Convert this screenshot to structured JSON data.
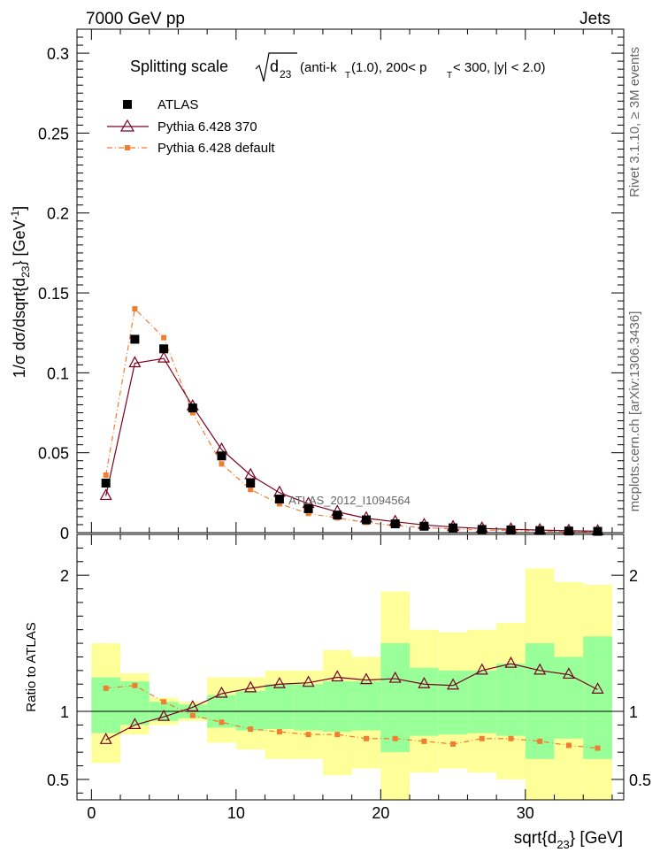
{
  "header": {
    "left": "7000 GeV pp",
    "right": "Jets"
  },
  "side_text": {
    "rivet": "Rivet 3.1.10, ≥ 3M events",
    "mcplots": "mcplots.cern.ch [arXiv:1306.3436]"
  },
  "watermark": "ATLAS_2012_I1094564",
  "title": {
    "prefix": "Splitting scale",
    "sqrt_base": "d",
    "sqrt_sub": "23",
    "cuts_a": "(anti-k",
    "cuts_a_sub": "T",
    "cuts_b": "(1.0), 200< p",
    "cuts_b_sub": "T",
    "cuts_c": " < 300, |y| < 2.0)"
  },
  "legend": {
    "atlas": "ATLAS",
    "p370": "Pythia 6.428 370",
    "pdef": "Pythia 6.428 default"
  },
  "axes": {
    "ylabel_main": "1/σ dσ/dsqrt{d",
    "ylabel_main_sub": "23",
    "ylabel_main_end": "} [GeV",
    "ylabel_main_sup": "-1",
    "ylabel_main_close": "]",
    "ylabel_ratio": "Ratio to ATLAS",
    "xlabel": "sqrt{d",
    "xlabel_sub": "23",
    "xlabel_end": "} [GeV]"
  },
  "colors": {
    "atlas": "#000000",
    "p370": "#7a0020",
    "pdef": "#f07d30",
    "band_inner": "#99ff99",
    "band_outer": "#ffff99"
  },
  "chart_data": [
    {
      "type": "scatter",
      "panel": "main",
      "xlim": [
        -1,
        36.8
      ],
      "ylim": [
        0,
        0.315
      ],
      "x_ticks": [
        0,
        10,
        20,
        30
      ],
      "y_ticks": [
        0,
        0.05,
        0.1,
        0.15,
        0.2,
        0.25,
        0.3
      ],
      "y_tick_labels": [
        "0",
        "0.05",
        "0.1",
        "0.15",
        "0.2",
        "0.25",
        "0.3"
      ],
      "x": [
        1,
        3,
        5,
        7,
        9,
        11,
        13,
        15,
        17,
        19,
        21,
        23,
        25,
        27,
        29,
        31,
        33,
        35
      ],
      "series": [
        {
          "name": "ATLAS",
          "values": [
            0.031,
            0.121,
            0.115,
            0.078,
            0.048,
            0.031,
            0.021,
            0.015,
            0.011,
            0.008,
            0.0055,
            0.004,
            0.003,
            0.002,
            0.0017,
            0.0013,
            0.001,
            0.0008
          ]
        },
        {
          "name": "Pythia 6.428 370",
          "values": [
            0.023,
            0.106,
            0.109,
            0.079,
            0.052,
            0.036,
            0.025,
            0.018,
            0.013,
            0.009,
            0.0068,
            0.0048,
            0.0035,
            0.0026,
            0.0021,
            0.0016,
            0.0012,
            0.0009
          ]
        },
        {
          "name": "Pythia 6.428 default",
          "values": [
            0.036,
            0.14,
            0.122,
            0.075,
            0.043,
            0.027,
            0.018,
            0.012,
            0.0092,
            0.0064,
            0.0044,
            0.0031,
            0.0023,
            0.0016,
            0.0014,
            0.001,
            0.0007,
            0.0006
          ]
        }
      ]
    },
    {
      "type": "line",
      "panel": "ratio",
      "xlim": [
        -1,
        36.8
      ],
      "ylim": [
        0.35,
        2.3
      ],
      "x_ticks": [
        0,
        10,
        20,
        30
      ],
      "x_tick_labels": [
        "0",
        "10",
        "20",
        "30"
      ],
      "y_ticks": [
        0.5,
        1,
        2
      ],
      "y_tick_labels": [
        "0.5",
        "1",
        "2"
      ],
      "reference_line": 1,
      "bins": [
        [
          0,
          2
        ],
        [
          2,
          4
        ],
        [
          4,
          6
        ],
        [
          6,
          8
        ],
        [
          8,
          10
        ],
        [
          10,
          12
        ],
        [
          12,
          14
        ],
        [
          14,
          16
        ],
        [
          16,
          18
        ],
        [
          18,
          20
        ],
        [
          20,
          22
        ],
        [
          22,
          24
        ],
        [
          24,
          26
        ],
        [
          26,
          28
        ],
        [
          28,
          30
        ],
        [
          30,
          32
        ],
        [
          32,
          34
        ],
        [
          34,
          36
        ]
      ],
      "band_inner": [
        [
          0.84,
          1.25
        ],
        [
          0.9,
          1.22
        ],
        [
          0.93,
          1.07
        ],
        [
          0.95,
          1.05
        ],
        [
          0.88,
          1.12
        ],
        [
          0.86,
          1.15
        ],
        [
          0.87,
          1.2
        ],
        [
          0.86,
          1.2
        ],
        [
          0.85,
          1.22
        ],
        [
          0.86,
          1.22
        ],
        [
          0.7,
          1.5
        ],
        [
          0.82,
          1.32
        ],
        [
          0.83,
          1.3
        ],
        [
          0.84,
          1.3
        ],
        [
          0.82,
          1.35
        ],
        [
          0.65,
          1.5
        ],
        [
          0.8,
          1.4
        ],
        [
          0.65,
          1.55
        ]
      ],
      "band_outer": [
        [
          0.62,
          1.5
        ],
        [
          0.83,
          1.28
        ],
        [
          0.9,
          1.1
        ],
        [
          0.93,
          1.07
        ],
        [
          0.77,
          1.25
        ],
        [
          0.72,
          1.25
        ],
        [
          0.65,
          1.3
        ],
        [
          0.65,
          1.3
        ],
        [
          0.53,
          1.45
        ],
        [
          0.58,
          1.4
        ],
        [
          0.35,
          1.88
        ],
        [
          0.55,
          1.6
        ],
        [
          0.58,
          1.58
        ],
        [
          0.55,
          1.6
        ],
        [
          0.5,
          1.65
        ],
        [
          0.35,
          2.05
        ],
        [
          0.35,
          1.95
        ],
        [
          0.35,
          1.93
        ]
      ],
      "series": [
        {
          "name": "Pythia 6.428 370",
          "values": [
            0.79,
            0.9,
            0.96,
            1.03,
            1.13,
            1.17,
            1.2,
            1.21,
            1.25,
            1.23,
            1.24,
            1.2,
            1.19,
            1.3,
            1.35,
            1.3,
            1.27,
            1.16
          ]
        },
        {
          "name": "Pythia 6.428 default",
          "values": [
            1.17,
            1.19,
            1.07,
            0.97,
            0.92,
            0.87,
            0.85,
            0.83,
            0.83,
            0.8,
            0.8,
            0.78,
            0.76,
            0.8,
            0.8,
            0.78,
            0.75,
            0.73
          ]
        }
      ]
    }
  ]
}
